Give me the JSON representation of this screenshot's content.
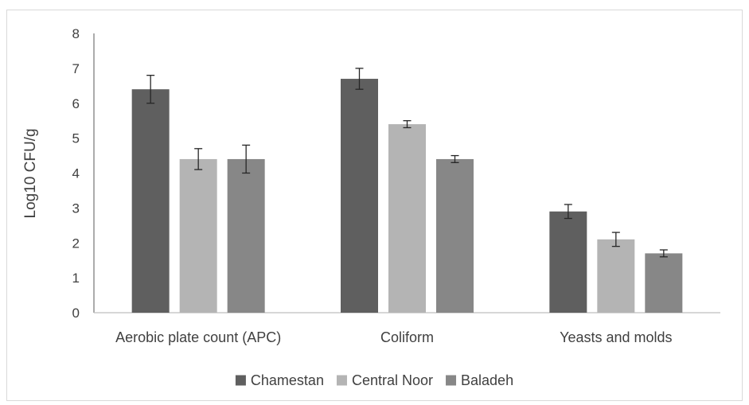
{
  "chart_data": {
    "type": "bar",
    "title": "",
    "xlabel": "",
    "ylabel": "Log10 CFU/g",
    "ylim": [
      0,
      8
    ],
    "yticks": [
      "0",
      "1",
      "2",
      "3",
      "4",
      "5",
      "6",
      "7",
      "8"
    ],
    "categories": [
      "Aerobic plate count (APC)",
      "Coliform",
      "Yeasts and molds"
    ],
    "series": [
      {
        "name": "Chamestan",
        "color": "#5f5f5f",
        "values": [
          6.4,
          6.7,
          2.9
        ],
        "errors": [
          0.4,
          0.3,
          0.2
        ]
      },
      {
        "name": "Central Noor",
        "color": "#b4b4b4",
        "values": [
          4.4,
          5.4,
          2.1
        ],
        "errors": [
          0.3,
          0.1,
          0.2
        ]
      },
      {
        "name": "Baladeh",
        "color": "#878787",
        "values": [
          4.4,
          4.4,
          1.7
        ],
        "errors": [
          0.4,
          0.1,
          0.1
        ]
      }
    ],
    "grid": false,
    "error_bars": true,
    "legend_position": "bottom"
  }
}
